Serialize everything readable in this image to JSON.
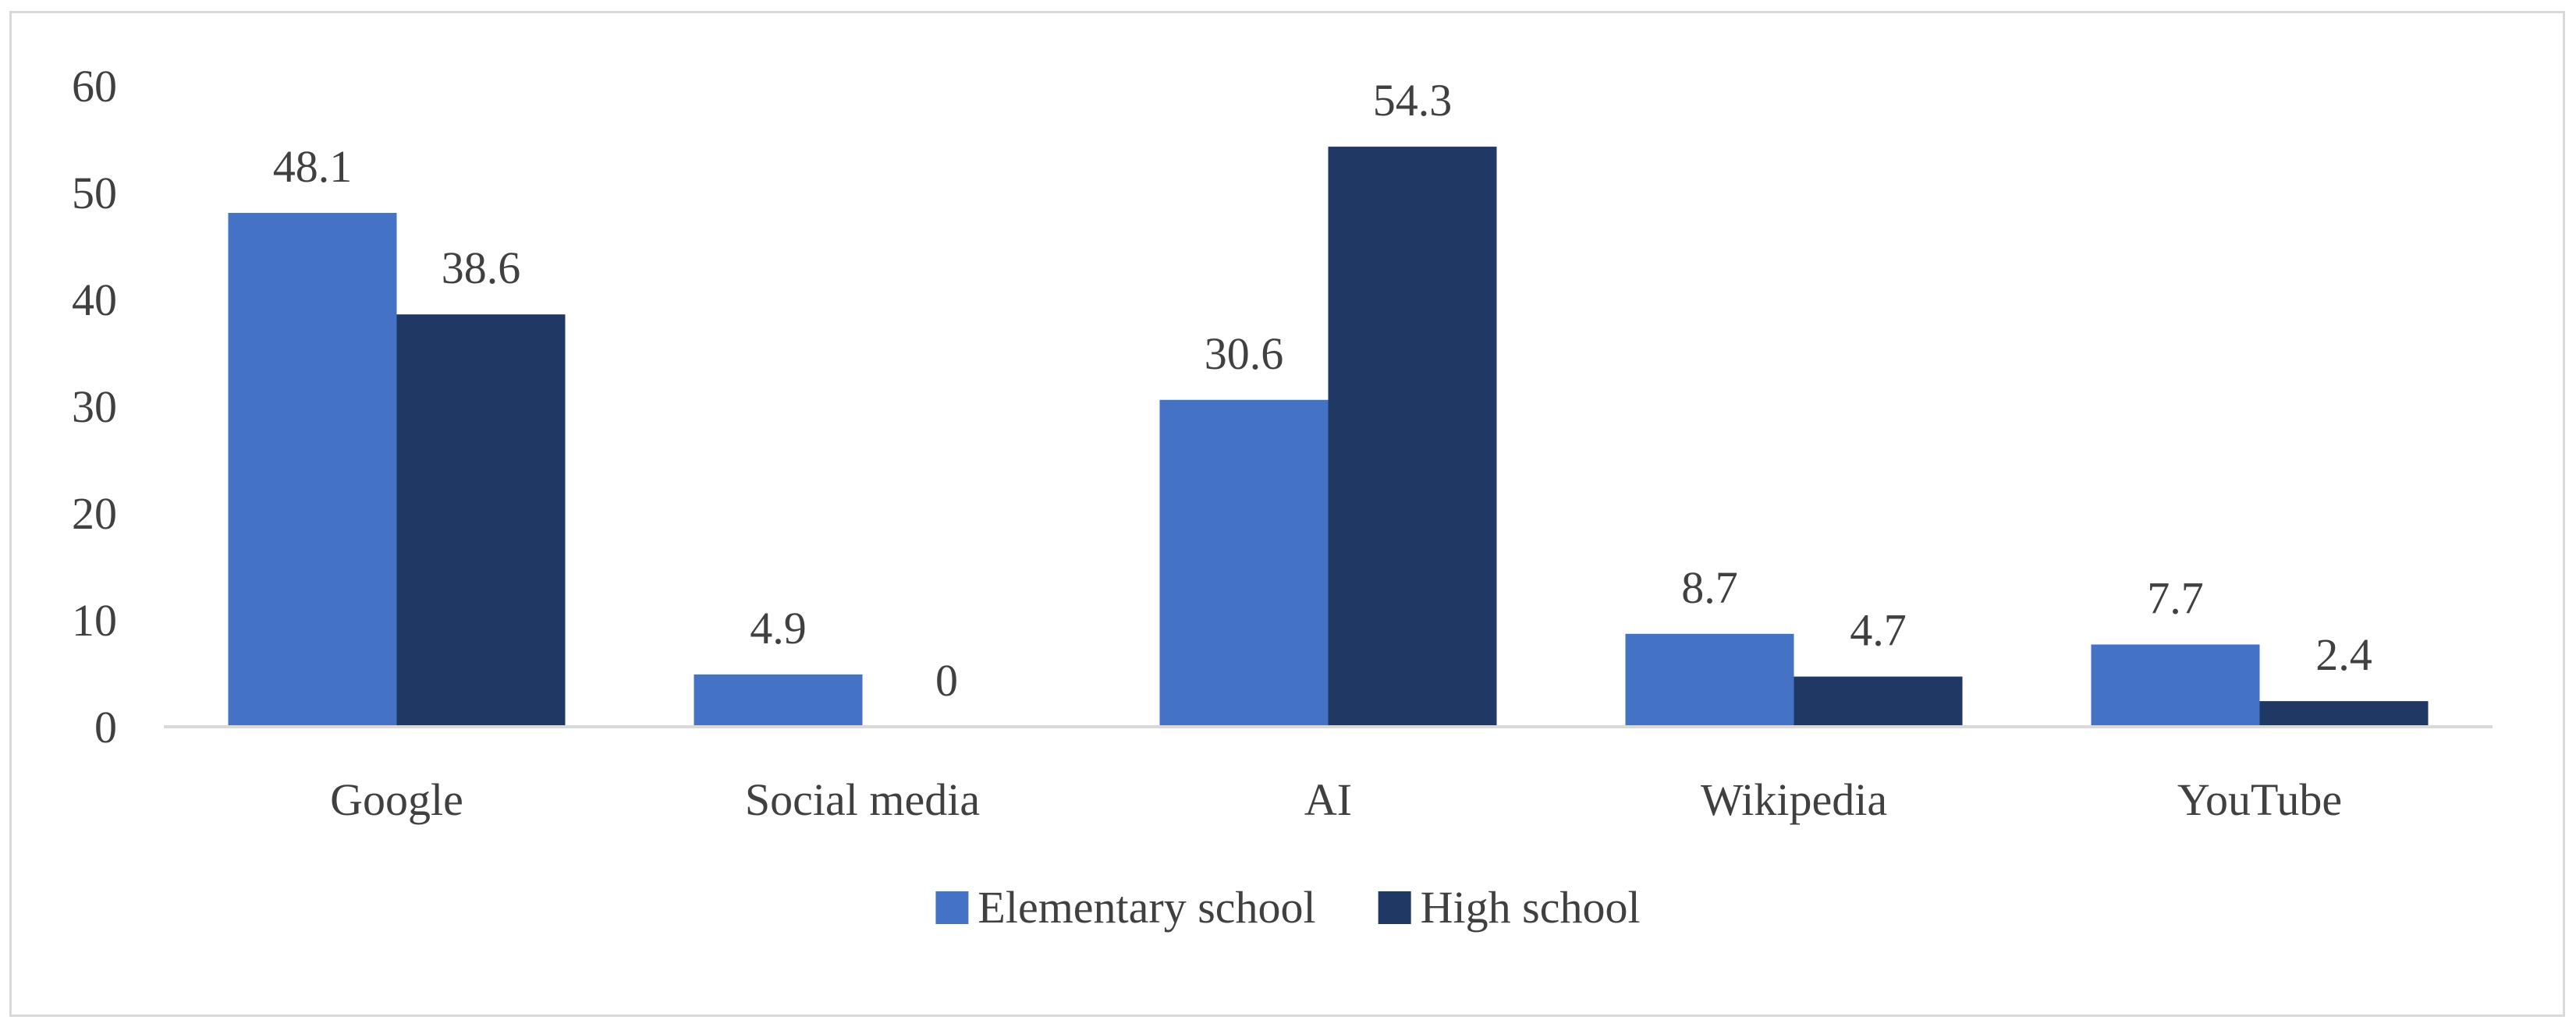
{
  "chart_data": {
    "type": "bar",
    "title": "",
    "xlabel": "",
    "ylabel": "",
    "categories": [
      "Google",
      "Social media",
      "AI",
      "Wikipedia",
      "YouTube"
    ],
    "series": [
      {
        "name": "Elementary school",
        "color": "#4472c4",
        "values": [
          48.1,
          4.9,
          30.6,
          8.7,
          7.7
        ]
      },
      {
        "name": "High school",
        "color": "#203864",
        "values": [
          38.6,
          0,
          54.3,
          4.7,
          2.4
        ]
      }
    ],
    "ylim": [
      0,
      60
    ],
    "yticks": [
      0,
      10,
      20,
      30,
      40,
      50,
      60
    ],
    "grid": false,
    "legend_position": "bottom"
  }
}
